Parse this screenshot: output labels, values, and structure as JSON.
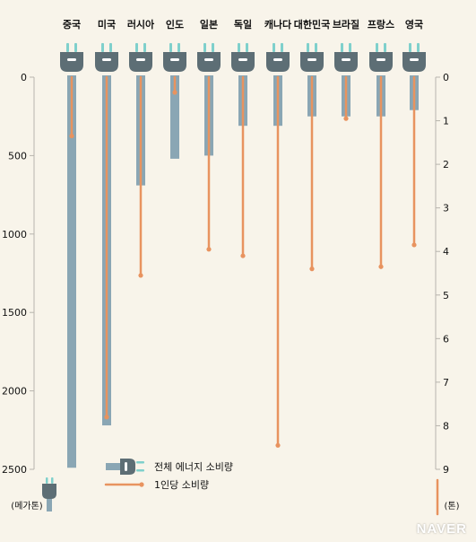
{
  "chart_data": {
    "type": "bar",
    "categories": [
      "중국",
      "미국",
      "러시아",
      "인도",
      "일본",
      "독일",
      "캐나다",
      "대한민국",
      "브라질",
      "프랑스",
      "영국"
    ],
    "series": [
      {
        "name": "전체 에너지 소비량",
        "values": [
          2490,
          2220,
          690,
          520,
          500,
          310,
          310,
          250,
          250,
          250,
          210
        ],
        "axis": "left"
      },
      {
        "name": "1인당 소비량",
        "values": [
          1.35,
          7.8,
          4.55,
          0.35,
          3.95,
          4.1,
          8.45,
          4.4,
          0.95,
          4.35,
          3.85
        ],
        "axis": "right"
      }
    ],
    "left_axis": {
      "ticks": [
        "0",
        "500",
        "1000",
        "1500",
        "2000",
        "2500"
      ],
      "unit": "(메가톤)",
      "range": [
        0,
        2500
      ]
    },
    "right_axis": {
      "ticks": [
        "0",
        "1",
        "2",
        "3",
        "4",
        "5",
        "6",
        "7",
        "8",
        "9"
      ],
      "unit": "(톤)",
      "range": [
        0,
        9
      ]
    },
    "legend_position": "bottom-center",
    "colors": {
      "bar": "#8aa6b4",
      "line": "#e8935f",
      "plug": "#5d6e75",
      "prong": "#7fd0cc",
      "axis": "#b7b4ad",
      "text": "#111111",
      "background": "#f8f4ea"
    }
  },
  "watermark": "NAVER"
}
